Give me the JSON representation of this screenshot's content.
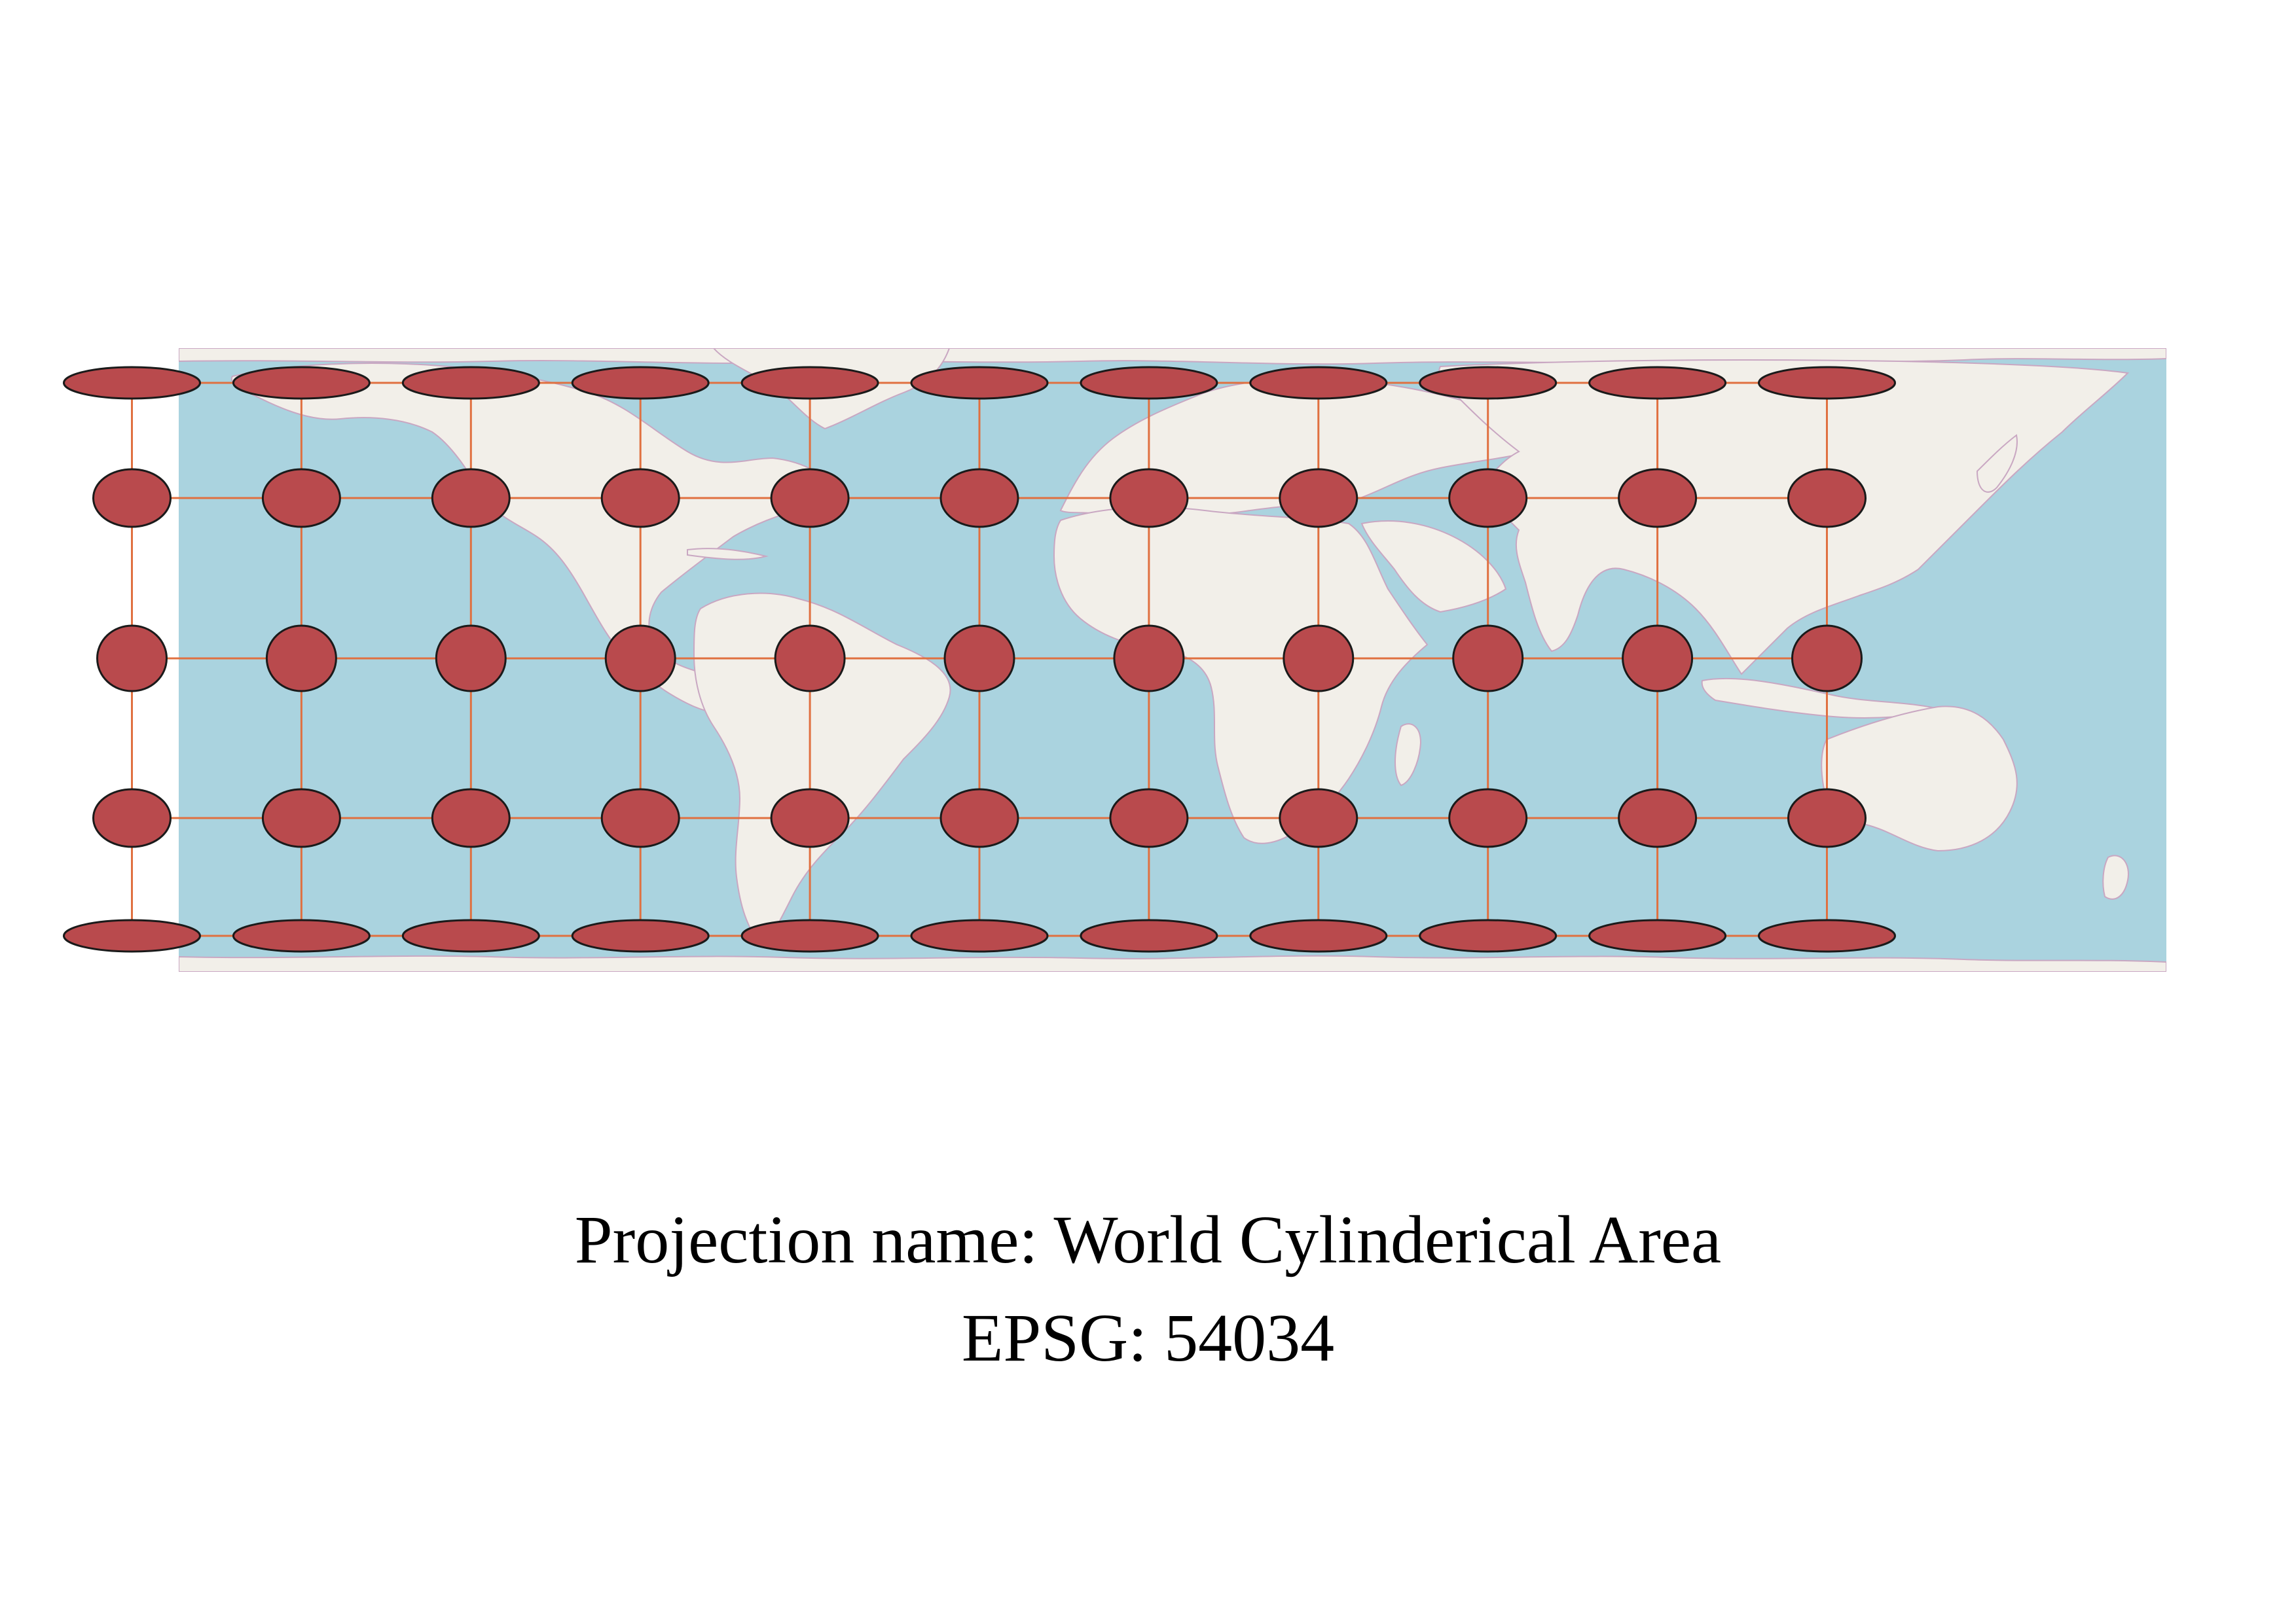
{
  "caption": {
    "projection_line": "Projection name: World Cylinderical Area",
    "epsg_line": "EPSG: 54034"
  },
  "map": {
    "basemap": "OpenStreetMap standard tiles",
    "projection": "World Cylindrical Equal Area",
    "graticule": {
      "longitudes_deg": [
        -150,
        -120,
        -90,
        -60,
        -30,
        0,
        30,
        60,
        90,
        120,
        150
      ],
      "latitudes_deg": [
        75,
        45,
        0,
        -45,
        -75
      ]
    },
    "indicatrix": {
      "longitudes_deg": [
        -150,
        -120,
        -90,
        -60,
        -30,
        0,
        30,
        60,
        90,
        120,
        150
      ],
      "latitudes_deg": [
        75,
        45,
        0,
        -45,
        -75
      ]
    },
    "colors": {
      "ocean": "#aad3df",
      "land": "#f2efe9",
      "border": "#c9a7c2",
      "graticule": "#e07040",
      "indicatrix_fill": "#b94a4d",
      "indicatrix_stroke": "#1a1a1a"
    }
  }
}
